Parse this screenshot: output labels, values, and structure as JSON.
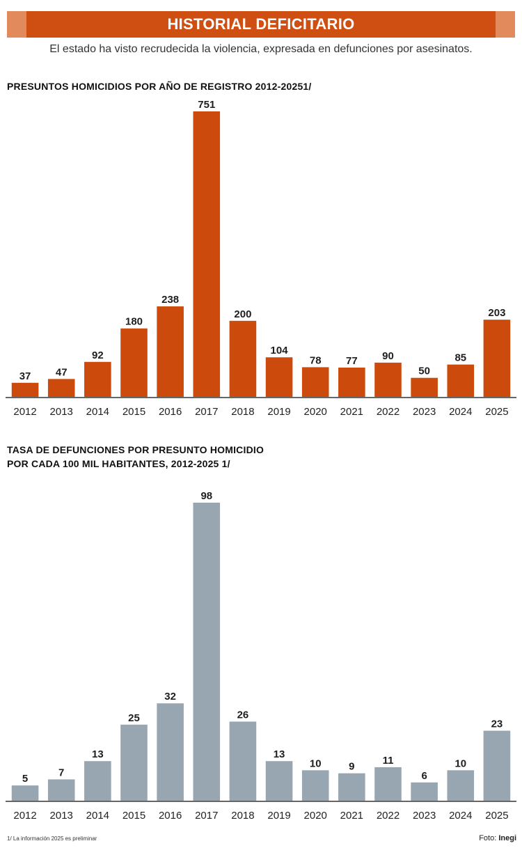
{
  "header": {
    "title": "HISTORIAL DEFICITARIO",
    "subtitle": "El estado ha visto recrudecida la violencia, expresada en defunciones por asesinatos."
  },
  "colors": {
    "banner": "#cf4e12",
    "banner_cap": "#e28a5c",
    "chart1_bars": "#cc4b0c",
    "chart2_bars": "#97a6b1"
  },
  "footnote": "1/ La información 2025 es preliminar",
  "credit": {
    "prefix": "Foto: ",
    "source": "Inegi"
  },
  "chart_data": [
    {
      "type": "bar",
      "title_lines": [
        "PRESUNTOS HOMICIDIOS POR AÑO DE REGISTRO 2012-20251/"
      ],
      "categories": [
        "2012",
        "2013",
        "2014",
        "2015",
        "2016",
        "2017",
        "2018",
        "2019",
        "2020",
        "2021",
        "2022",
        "2023",
        "2024",
        "2025"
      ],
      "values": [
        37,
        47,
        92,
        180,
        238,
        751,
        200,
        104,
        78,
        77,
        90,
        50,
        85,
        203
      ],
      "ylim": [
        0,
        751
      ],
      "color": "#cc4b0c",
      "grid": false,
      "legend": "none"
    },
    {
      "type": "bar",
      "title_lines": [
        "TASA DE DEFUNCIONES POR PRESUNTO HOMICIDIO",
        "POR CADA 100 MIL HABITANTES, 2012-2025 1/"
      ],
      "categories": [
        "2012",
        "2013",
        "2014",
        "2015",
        "2016",
        "2017",
        "2018",
        "2019",
        "2020",
        "2021",
        "2022",
        "2023",
        "2024",
        "2025"
      ],
      "values": [
        5,
        7,
        13,
        25,
        32,
        98,
        26,
        13,
        10,
        9,
        11,
        6,
        10,
        23
      ],
      "ylim": [
        0,
        98
      ],
      "color": "#97a6b1",
      "grid": false,
      "legend": "none"
    }
  ]
}
